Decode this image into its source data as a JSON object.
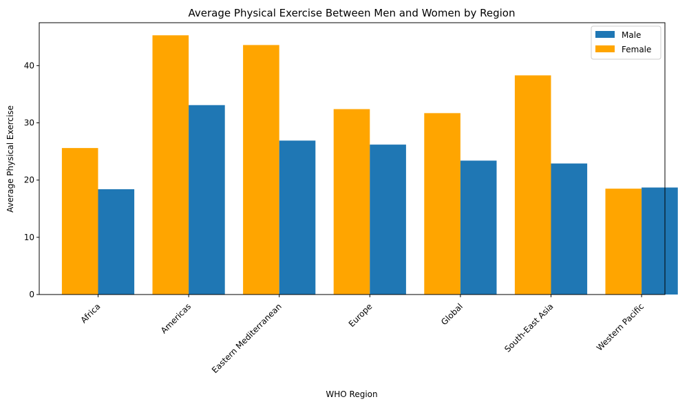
{
  "chart_data": {
    "type": "bar",
    "title": "Average Physical Exercise Between Men and Women by Region",
    "xlabel": "WHO Region",
    "ylabel": "Average Physical Exercise",
    "categories": [
      "Africa",
      "Americas",
      "Eastern Mediterranean",
      "Europe",
      "Global",
      "South-East Asia",
      "Western Pacific"
    ],
    "series": [
      {
        "name": "Female",
        "color": "#ffa500",
        "values": [
          25.6,
          45.3,
          43.6,
          32.4,
          31.7,
          38.3,
          18.5
        ]
      },
      {
        "name": "Male",
        "color": "#1f77b4",
        "values": [
          18.4,
          33.1,
          26.9,
          26.2,
          23.4,
          22.9,
          18.7
        ]
      }
    ],
    "legend_order": [
      "Male",
      "Female"
    ],
    "ylim": [
      0,
      47.5
    ],
    "yticks": [
      0,
      10,
      20,
      30,
      40
    ],
    "legend_position": "top-right",
    "grid": false
  }
}
